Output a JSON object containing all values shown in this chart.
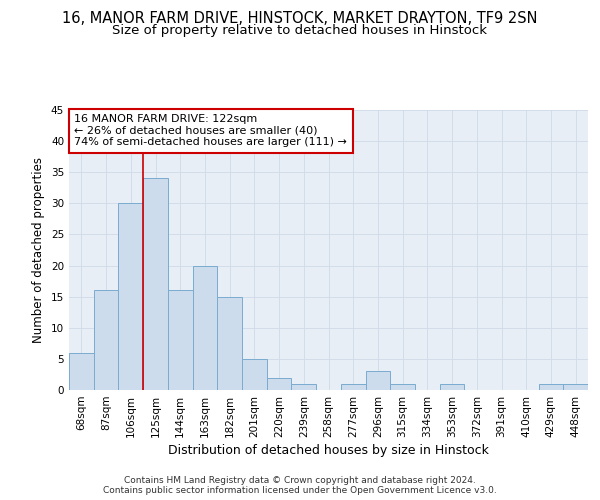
{
  "title": "16, MANOR FARM DRIVE, HINSTOCK, MARKET DRAYTON, TF9 2SN",
  "subtitle": "Size of property relative to detached houses in Hinstock",
  "xlabel": "Distribution of detached houses by size in Hinstock",
  "ylabel": "Number of detached properties",
  "bin_labels": [
    "68sqm",
    "87sqm",
    "106sqm",
    "125sqm",
    "144sqm",
    "163sqm",
    "182sqm",
    "201sqm",
    "220sqm",
    "239sqm",
    "258sqm",
    "277sqm",
    "296sqm",
    "315sqm",
    "334sqm",
    "353sqm",
    "372sqm",
    "391sqm",
    "410sqm",
    "429sqm",
    "448sqm"
  ],
  "bar_heights": [
    6,
    16,
    30,
    34,
    16,
    20,
    15,
    5,
    2,
    1,
    0,
    1,
    3,
    1,
    0,
    1,
    0,
    0,
    0,
    1,
    1
  ],
  "bar_color": "#ccdcec",
  "bar_edgecolor": "#7aabcf",
  "property_line_x": 3,
  "annotation_text": "16 MANOR FARM DRIVE: 122sqm\n← 26% of detached houses are smaller (40)\n74% of semi-detached houses are larger (111) →",
  "annotation_box_color": "#ffffff",
  "annotation_box_edgecolor": "#cc0000",
  "vline_color": "#cc0000",
  "ylim": [
    0,
    45
  ],
  "yticks": [
    0,
    5,
    10,
    15,
    20,
    25,
    30,
    35,
    40,
    45
  ],
  "grid_color": "#d0dae8",
  "bg_color": "#e8eef6",
  "footer_text": "Contains HM Land Registry data © Crown copyright and database right 2024.\nContains public sector information licensed under the Open Government Licence v3.0.",
  "title_fontsize": 10.5,
  "subtitle_fontsize": 9.5,
  "xlabel_fontsize": 9,
  "ylabel_fontsize": 8.5,
  "tick_fontsize": 7.5,
  "annotation_fontsize": 8,
  "footer_fontsize": 6.5
}
